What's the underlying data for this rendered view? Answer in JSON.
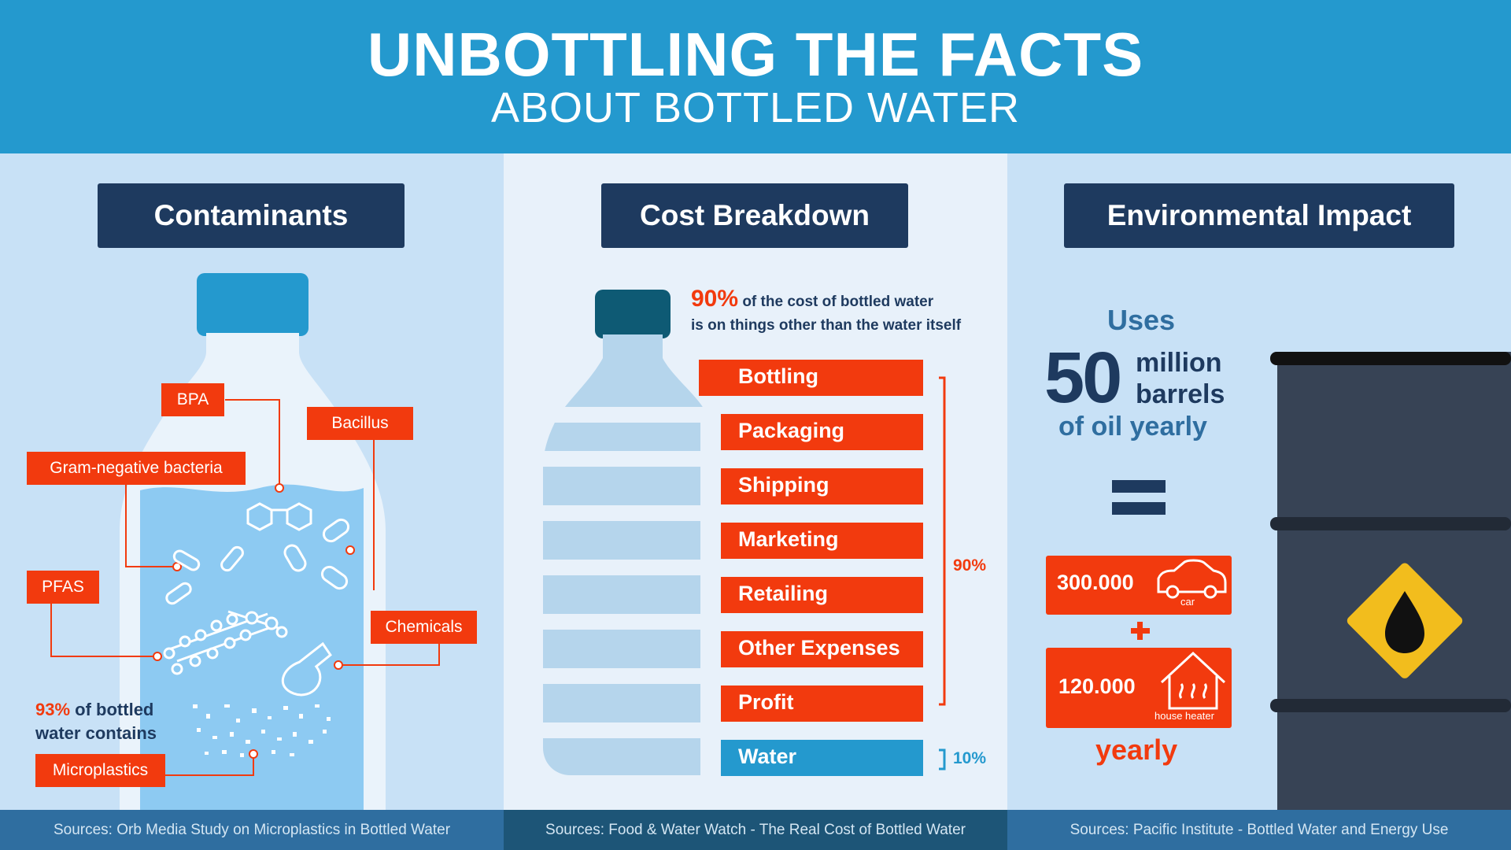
{
  "header": {
    "title": "UNBOTTLING THE FACTS",
    "subtitle": "ABOUT BOTTLED WATER"
  },
  "contaminants": {
    "title": "Contaminants",
    "tags": {
      "bpa": "BPA",
      "bacillus": "Bacillus",
      "gram": "Gram-negative bacteria",
      "pfas": "PFAS",
      "chemicals": "Chemicals",
      "microplastics": "Microplastics"
    },
    "stat_pct": "93%",
    "stat_text1": "of bottled",
    "stat_text2": "water contains"
  },
  "cost": {
    "title": "Cost Breakdown",
    "intro_pct": "90%",
    "intro_line1": "of the cost of bottled water",
    "intro_line2": "is on things other than the water itself",
    "bars": [
      "Bottling",
      "Packaging",
      "Shipping",
      "Marketing",
      "Retailing",
      "Other Expenses",
      "Profit",
      "Water"
    ],
    "bracket_main": "90%",
    "bracket_water": "10%",
    "colors": {
      "orange": "#f23a0e",
      "water": "#2499ce"
    }
  },
  "environment": {
    "title": "Environmental Impact",
    "uses": "Uses",
    "big_number": "50",
    "million": "million",
    "barrels": "barrels",
    "of_oil": "of oil yearly",
    "equals": "=",
    "cars_value": "300.000",
    "cars_label": "car",
    "plus": "+",
    "heaters_value": "120.000",
    "heaters_label": "house heater",
    "yearly": "yearly"
  },
  "footer": {
    "source1": "Sources: Orb Media Study on Microplastics in Bottled Water",
    "source2": "Sources: Food & Water Watch - The Real Cost of Bottled Water",
    "source3": "Sources: Pacific Institute - Bottled Water and Energy Use"
  },
  "icons": [
    "car-icon",
    "house-heater-icon",
    "oil-drop-icon",
    "bacteria-icon",
    "molecule-icon",
    "flask-icon",
    "microplastic-icon"
  ]
}
